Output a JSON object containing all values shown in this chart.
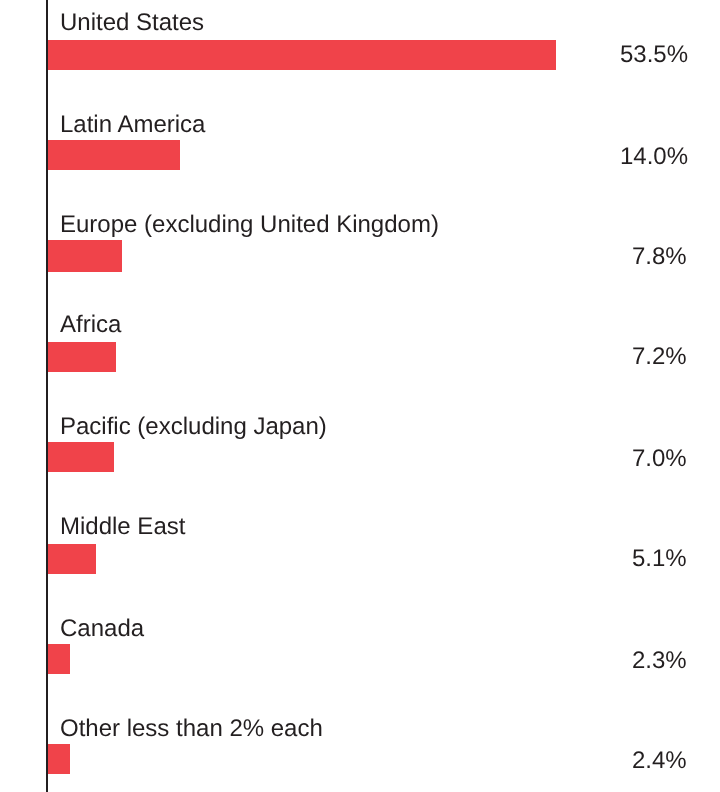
{
  "chart_data": {
    "type": "bar",
    "orientation": "horizontal",
    "categories": [
      "United States",
      "Latin America",
      "Europe (excluding United Kingdom)",
      "Africa",
      "Pacific (excluding Japan)",
      "Middle East",
      "Canada",
      "Other less than 2% each"
    ],
    "values": [
      53.5,
      14.0,
      7.8,
      7.2,
      7.0,
      5.1,
      2.3,
      2.4
    ],
    "value_labels": [
      "53.5%",
      "14.0%",
      "7.8%",
      "7.2%",
      "7.0%",
      "5.1%",
      "2.3%",
      "2.4%"
    ],
    "color": "#f0434a"
  }
}
